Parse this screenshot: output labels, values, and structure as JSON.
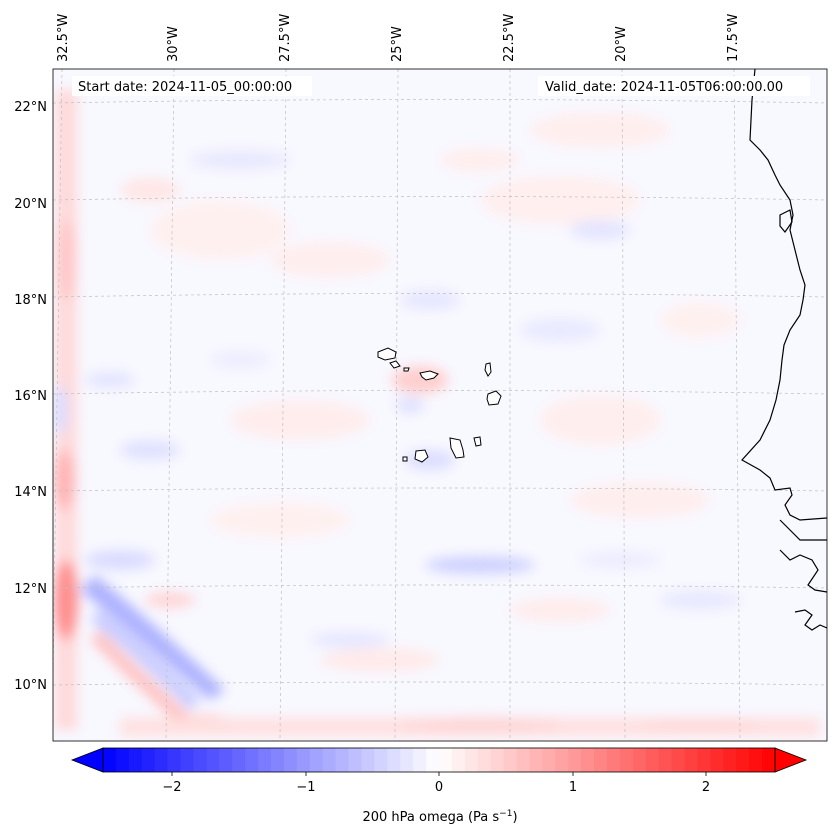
{
  "header": {
    "start_date": "Start date: 2024-11-05_00:00:00",
    "valid_date": "Valid_date: 2024-11-05T06:00:00.00"
  },
  "axes": {
    "lon_labels": [
      "32.5°W",
      "30°W",
      "27.5°W",
      "25°W",
      "22.5°W",
      "20°W",
      "17.5°W"
    ],
    "lat_labels": [
      "22°N",
      "20°N",
      "18°N",
      "16°N",
      "14°N",
      "12°N",
      "10°N"
    ]
  },
  "colorbar": {
    "label": "200 hPa omega (Pa s",
    "label_sup": "−1",
    "label_end": ")",
    "ticks": [
      "−2",
      "−1",
      "0",
      "1",
      "2"
    ],
    "range": [
      -2.6,
      2.6
    ],
    "colormap": "bwr",
    "low_color": "#0000ff",
    "mid_color": "#ffffff",
    "high_color": "#ff0000"
  },
  "colors": {
    "coastline": "#000000",
    "gridline": "#bfbfbf",
    "field_background": "#f8f8ff"
  }
}
